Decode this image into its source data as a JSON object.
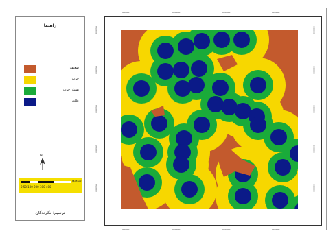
{
  "legend": {
    "title": "راهنما",
    "items": [
      {
        "label": "ضعیف",
        "color": "#c35a2d"
      },
      {
        "label": "خوب",
        "color": "#f7d700"
      },
      {
        "label": "بسیار خوب",
        "color": "#1aab3a"
      },
      {
        "label": "عالی",
        "color": "#0b1a88"
      }
    ],
    "north_label": "N",
    "scale_units": "Meters",
    "scale_ticks": "0  50 100   200   300   400",
    "credit": "ترسیم: نگارندگان"
  },
  "map": {
    "background_class_color": "#c35a2d",
    "classes": {
      "poor": "#c35a2d",
      "good": "#f7d700",
      "very_good": "#1aab3a",
      "excellent": "#0b1a88"
    },
    "grid_coords": {
      "top": [
        "000000",
        "000000",
        "000000",
        "000000"
      ],
      "bottom": [
        "000000",
        "000000",
        "000000",
        "000000"
      ],
      "left": [
        "000000",
        "000000",
        "000000",
        "000000",
        "000000"
      ],
      "right": [
        "000000",
        "000000",
        "000000",
        "000000",
        "000000"
      ]
    }
  }
}
